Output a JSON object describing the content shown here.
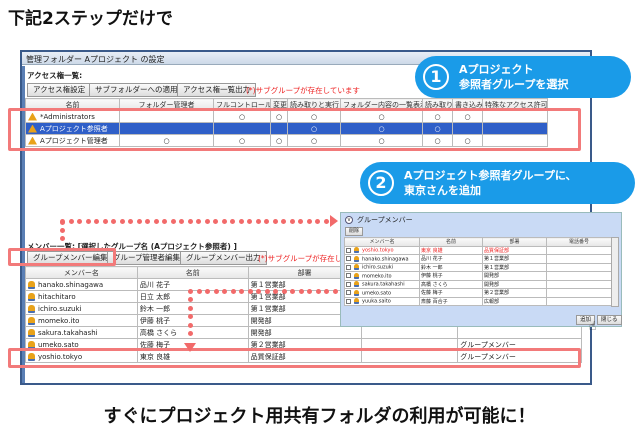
{
  "headline": "下記2ステップだけで",
  "footer": "すぐにプロジェクト用共有フォルダの利用が可能に！",
  "window": {
    "title": "管理フォルダー Aプロジェクト の設定"
  },
  "access": {
    "label": "アクセス権一覧:",
    "buttons": [
      "アクセス権設定",
      "サブフォルダーへの適用",
      "アクセス権一覧出力"
    ],
    "warning": "(*)サブグループが存在しています",
    "columns": [
      "名前",
      "フォルダー管理者",
      "フルコントロール",
      "変更",
      "読み取りと実行",
      "フォルダー内容の一覧表示",
      "読み取り",
      "書き込み",
      "特殊なアクセス許可"
    ],
    "rows": [
      {
        "name": "*Administrators",
        "cells": [
          "",
          "○",
          "○",
          "○",
          "○",
          "○",
          "○",
          ""
        ],
        "selected": false
      },
      {
        "name": "Aプロジェクト参照者",
        "cells": [
          "",
          "",
          "",
          "○",
          "○",
          "○",
          "",
          ""
        ],
        "selected": true
      },
      {
        "name": "Aプロジェクト管理者",
        "cells": [
          "○",
          "○",
          "○",
          "○",
          "○",
          "○",
          "○",
          ""
        ],
        "selected": false
      }
    ]
  },
  "callout1": {
    "number": "1",
    "line1": "Aプロジェクト",
    "line2": "参照者グループを選択"
  },
  "callout2": {
    "number": "2",
    "line1": "Aプロジェクト参照者グループに、",
    "line2": "東京さんを追加"
  },
  "members": {
    "label": "メンバー一覧: [選択したグループ名 (Aプロジェクト参照者) ]",
    "buttons": [
      "グループメンバー編集",
      "グループ管理者編集",
      "グループメンバー出力"
    ],
    "warning": "(*)サブグループが存在しています",
    "columns": [
      "メンバー名",
      "名前",
      "部署",
      "",
      ""
    ],
    "rows": [
      [
        "hanako.shinagawa",
        "品川 花子",
        "第１営業部",
        ""
      ],
      [
        "hitachitaro",
        "日立 太郎",
        "第１営業部",
        ""
      ],
      [
        "ichiro.suzuki",
        "鈴木 一郎",
        "第１営業部",
        ""
      ],
      [
        "momeko.ito",
        "伊藤 桃子",
        "開発部",
        ""
      ],
      [
        "sakura.takahashi",
        "高橋 さくら",
        "開発部",
        ""
      ],
      [
        "umeko.sato",
        "佐藤 梅子",
        "第２営業部",
        "グループメンバー"
      ],
      [
        "yoshio.tokyo",
        "東京 良雄",
        "品質保証部",
        "グループメンバー"
      ]
    ],
    "extra": "グループメンバー"
  },
  "popup": {
    "title": "グループメンバー",
    "delete": "削除",
    "columns": [
      "メンバー名",
      "名前",
      "部署",
      "電話番号"
    ],
    "rows": [
      [
        "yoshio.tokyo",
        "東京 良雄",
        "品質保証部",
        ""
      ],
      [
        "hanako.shinagawa",
        "品川 花子",
        "第１営業部",
        ""
      ],
      [
        "ichiro.suzuki",
        "鈴木 一郎",
        "第１営業部",
        ""
      ],
      [
        "momeko.ito",
        "伊藤 桃子",
        "開発部",
        ""
      ],
      [
        "sakura.takahashi",
        "高橋 さくら",
        "開発部",
        ""
      ],
      [
        "umeko.sato",
        "佐藤 梅子",
        "第２営業部",
        ""
      ],
      [
        "yuuka.saito",
        "斎藤 百合子",
        "広報部",
        ""
      ]
    ],
    "add": "追加",
    "close": "閉じる"
  },
  "colors": {
    "accent": "#1a9be8",
    "highlight": "#f27a7a",
    "selected": "#2f5fc8",
    "warning": "#ee2222"
  }
}
